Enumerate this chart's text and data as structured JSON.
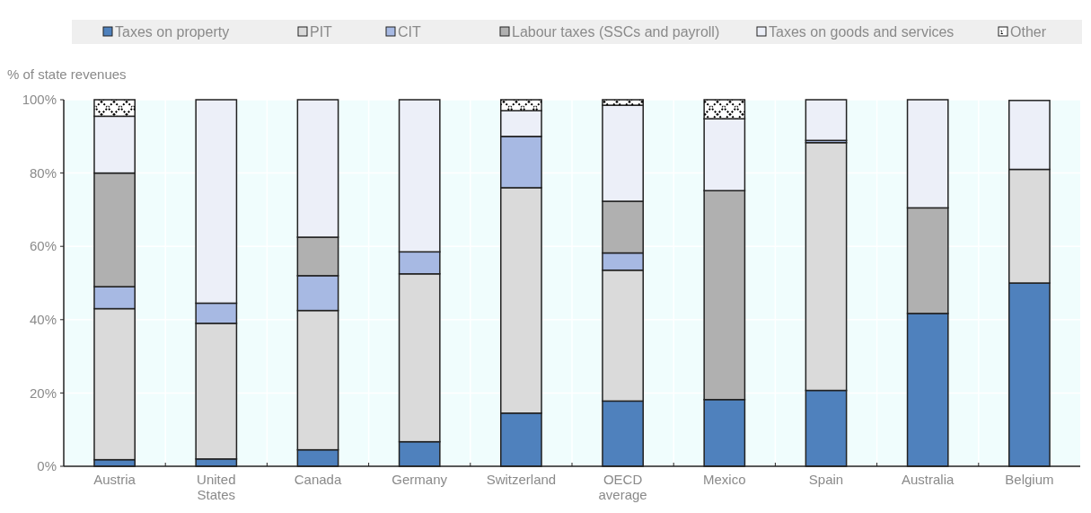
{
  "chart_data": {
    "type": "bar",
    "stacked": true,
    "ylabel": "% of state revenues",
    "categories": [
      "Austria",
      "United States",
      "Canada",
      "Germany",
      "Switzerland",
      "OECD average",
      "Mexico",
      "Spain",
      "Australia",
      "Belgium"
    ],
    "series": [
      {
        "name": "Taxes on property",
        "color": "#4f81bd",
        "values": [
          1.8,
          2,
          4.5,
          6.7,
          14.5,
          17.8,
          18.2,
          20.7,
          41.7,
          50
        ]
      },
      {
        "name": "PIT",
        "color": "#dadada",
        "values": [
          41.2,
          37,
          38,
          45.8,
          61.5,
          35.7,
          0,
          67.6,
          0,
          31
        ]
      },
      {
        "name": "CIT",
        "color": "#a7b9e3",
        "values": [
          6,
          5.5,
          9.5,
          6,
          14,
          4.7,
          0,
          0.6,
          0,
          0
        ]
      },
      {
        "name": "Labour taxes (SSCs and payroll)",
        "color": "#b0b0b0",
        "values": [
          31,
          0,
          10.5,
          0,
          0,
          14.1,
          57,
          0,
          28.8,
          0
        ]
      },
      {
        "name": "Taxes on goods and services",
        "color": "#eceff8",
        "values": [
          15.5,
          55.5,
          37.5,
          41.5,
          7,
          26.2,
          19.6,
          11.1,
          29.5,
          18.8
        ]
      },
      {
        "name": "Other",
        "color": "#ffffff",
        "values": [
          4.5,
          0,
          0,
          0,
          3,
          1.5,
          5.2,
          0,
          0,
          0
        ]
      }
    ],
    "ylim": [
      0,
      100
    ],
    "yticks": [
      {
        "value": 0,
        "label": "0%"
      },
      {
        "value": 20,
        "label": "20%"
      },
      {
        "value": 40,
        "label": "40%"
      },
      {
        "value": 60,
        "label": "60%"
      },
      {
        "value": 80,
        "label": "80%"
      },
      {
        "value": 100,
        "label": "100%"
      }
    ],
    "grid": true,
    "legend": "top"
  }
}
